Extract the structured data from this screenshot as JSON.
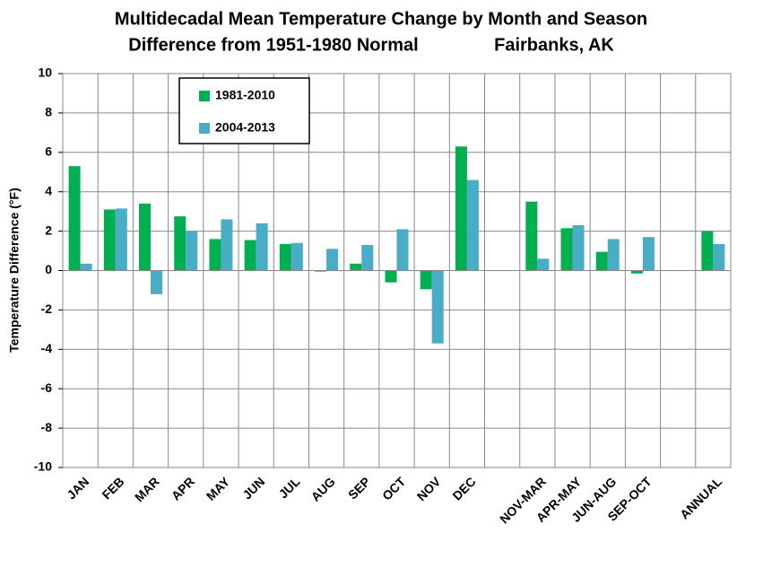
{
  "chart_data": {
    "type": "bar",
    "title": "Multidecadal Mean Temperature Change by Month and Season",
    "subtitle": "Difference from 1951-1980 Normal",
    "location": "Fairbanks, AK",
    "y_label": "Temperature Difference (°F)",
    "categories": [
      "JAN",
      "FEB",
      "MAR",
      "APR",
      "MAY",
      "JUN",
      "JUL",
      "AUG",
      "SEP",
      "OCT",
      "NOV",
      "DEC",
      null,
      "NOV-MAR",
      "APR-MAY",
      "JUN-AUG",
      "SEP-OCT",
      null,
      "ANNUAL"
    ],
    "series": [
      {
        "name": "1981-2010",
        "color": "#00b050",
        "values": [
          5.3,
          3.1,
          3.4,
          2.75,
          1.6,
          1.55,
          1.35,
          -0.05,
          0.35,
          -0.6,
          -0.95,
          6.3,
          null,
          3.5,
          2.15,
          0.95,
          -0.15,
          null,
          2.0
        ]
      },
      {
        "name": "2004-2013",
        "color": "#4bacc6",
        "values": [
          0.35,
          3.15,
          -1.2,
          2.0,
          2.6,
          2.4,
          1.4,
          1.1,
          1.3,
          2.1,
          -3.7,
          4.6,
          null,
          0.6,
          2.3,
          1.6,
          1.7,
          null,
          1.35
        ]
      }
    ],
    "ylim": [
      -10,
      10
    ],
    "yticks": [
      -10,
      -8,
      -6,
      -4,
      -2,
      0,
      2,
      4,
      6,
      8,
      10
    ],
    "grid": true
  }
}
